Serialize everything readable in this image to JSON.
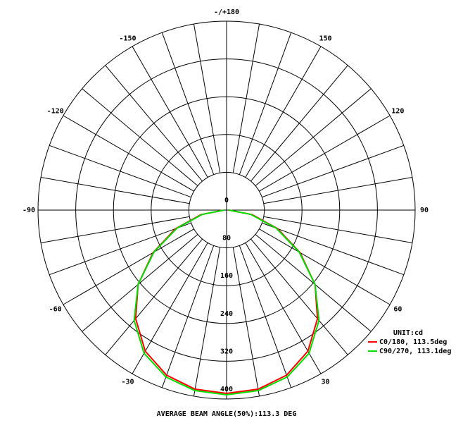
{
  "chart_data": {
    "type": "polar",
    "footer": "AVERAGE BEAM ANGLE(50%):113.3 DEG",
    "unit": "UNIT:cd",
    "rlim": [
      0,
      400
    ],
    "rticks": [
      0,
      80,
      160,
      240,
      320,
      400
    ],
    "angle_ticks": [
      -150,
      -120,
      -90,
      -60,
      -30,
      30,
      60,
      90,
      120,
      150,
      {
        "value": 180,
        "label": "-/+180"
      }
    ],
    "angle_grid": [
      -170,
      -160,
      -150,
      -140,
      -130,
      -120,
      -110,
      -100,
      -90,
      -80,
      -70,
      -60,
      -50,
      -40,
      -30,
      -20,
      -10,
      0,
      10,
      20,
      30,
      40,
      50,
      60,
      70,
      80,
      90,
      100,
      110,
      120,
      130,
      140,
      150,
      160,
      170,
      180
    ],
    "theta": [
      -90,
      -80,
      -70,
      -60,
      -50,
      -40,
      -30,
      -20,
      -10,
      0,
      10,
      20,
      30,
      40,
      50,
      60,
      70,
      80,
      90
    ],
    "series": [
      {
        "name": "C0/180, 113.5deg",
        "color": "#ff0000",
        "values": [
          5,
          55,
          115,
          180,
          245,
          300,
          345,
          372,
          385,
          388,
          385,
          372,
          345,
          300,
          245,
          180,
          115,
          55,
          5
        ]
      },
      {
        "name": "C90/270, 113.1deg",
        "color": "#00e000",
        "values": [
          5,
          52,
          112,
          178,
          245,
          305,
          350,
          376,
          388,
          391,
          388,
          376,
          350,
          305,
          245,
          178,
          112,
          52,
          5
        ]
      }
    ]
  }
}
